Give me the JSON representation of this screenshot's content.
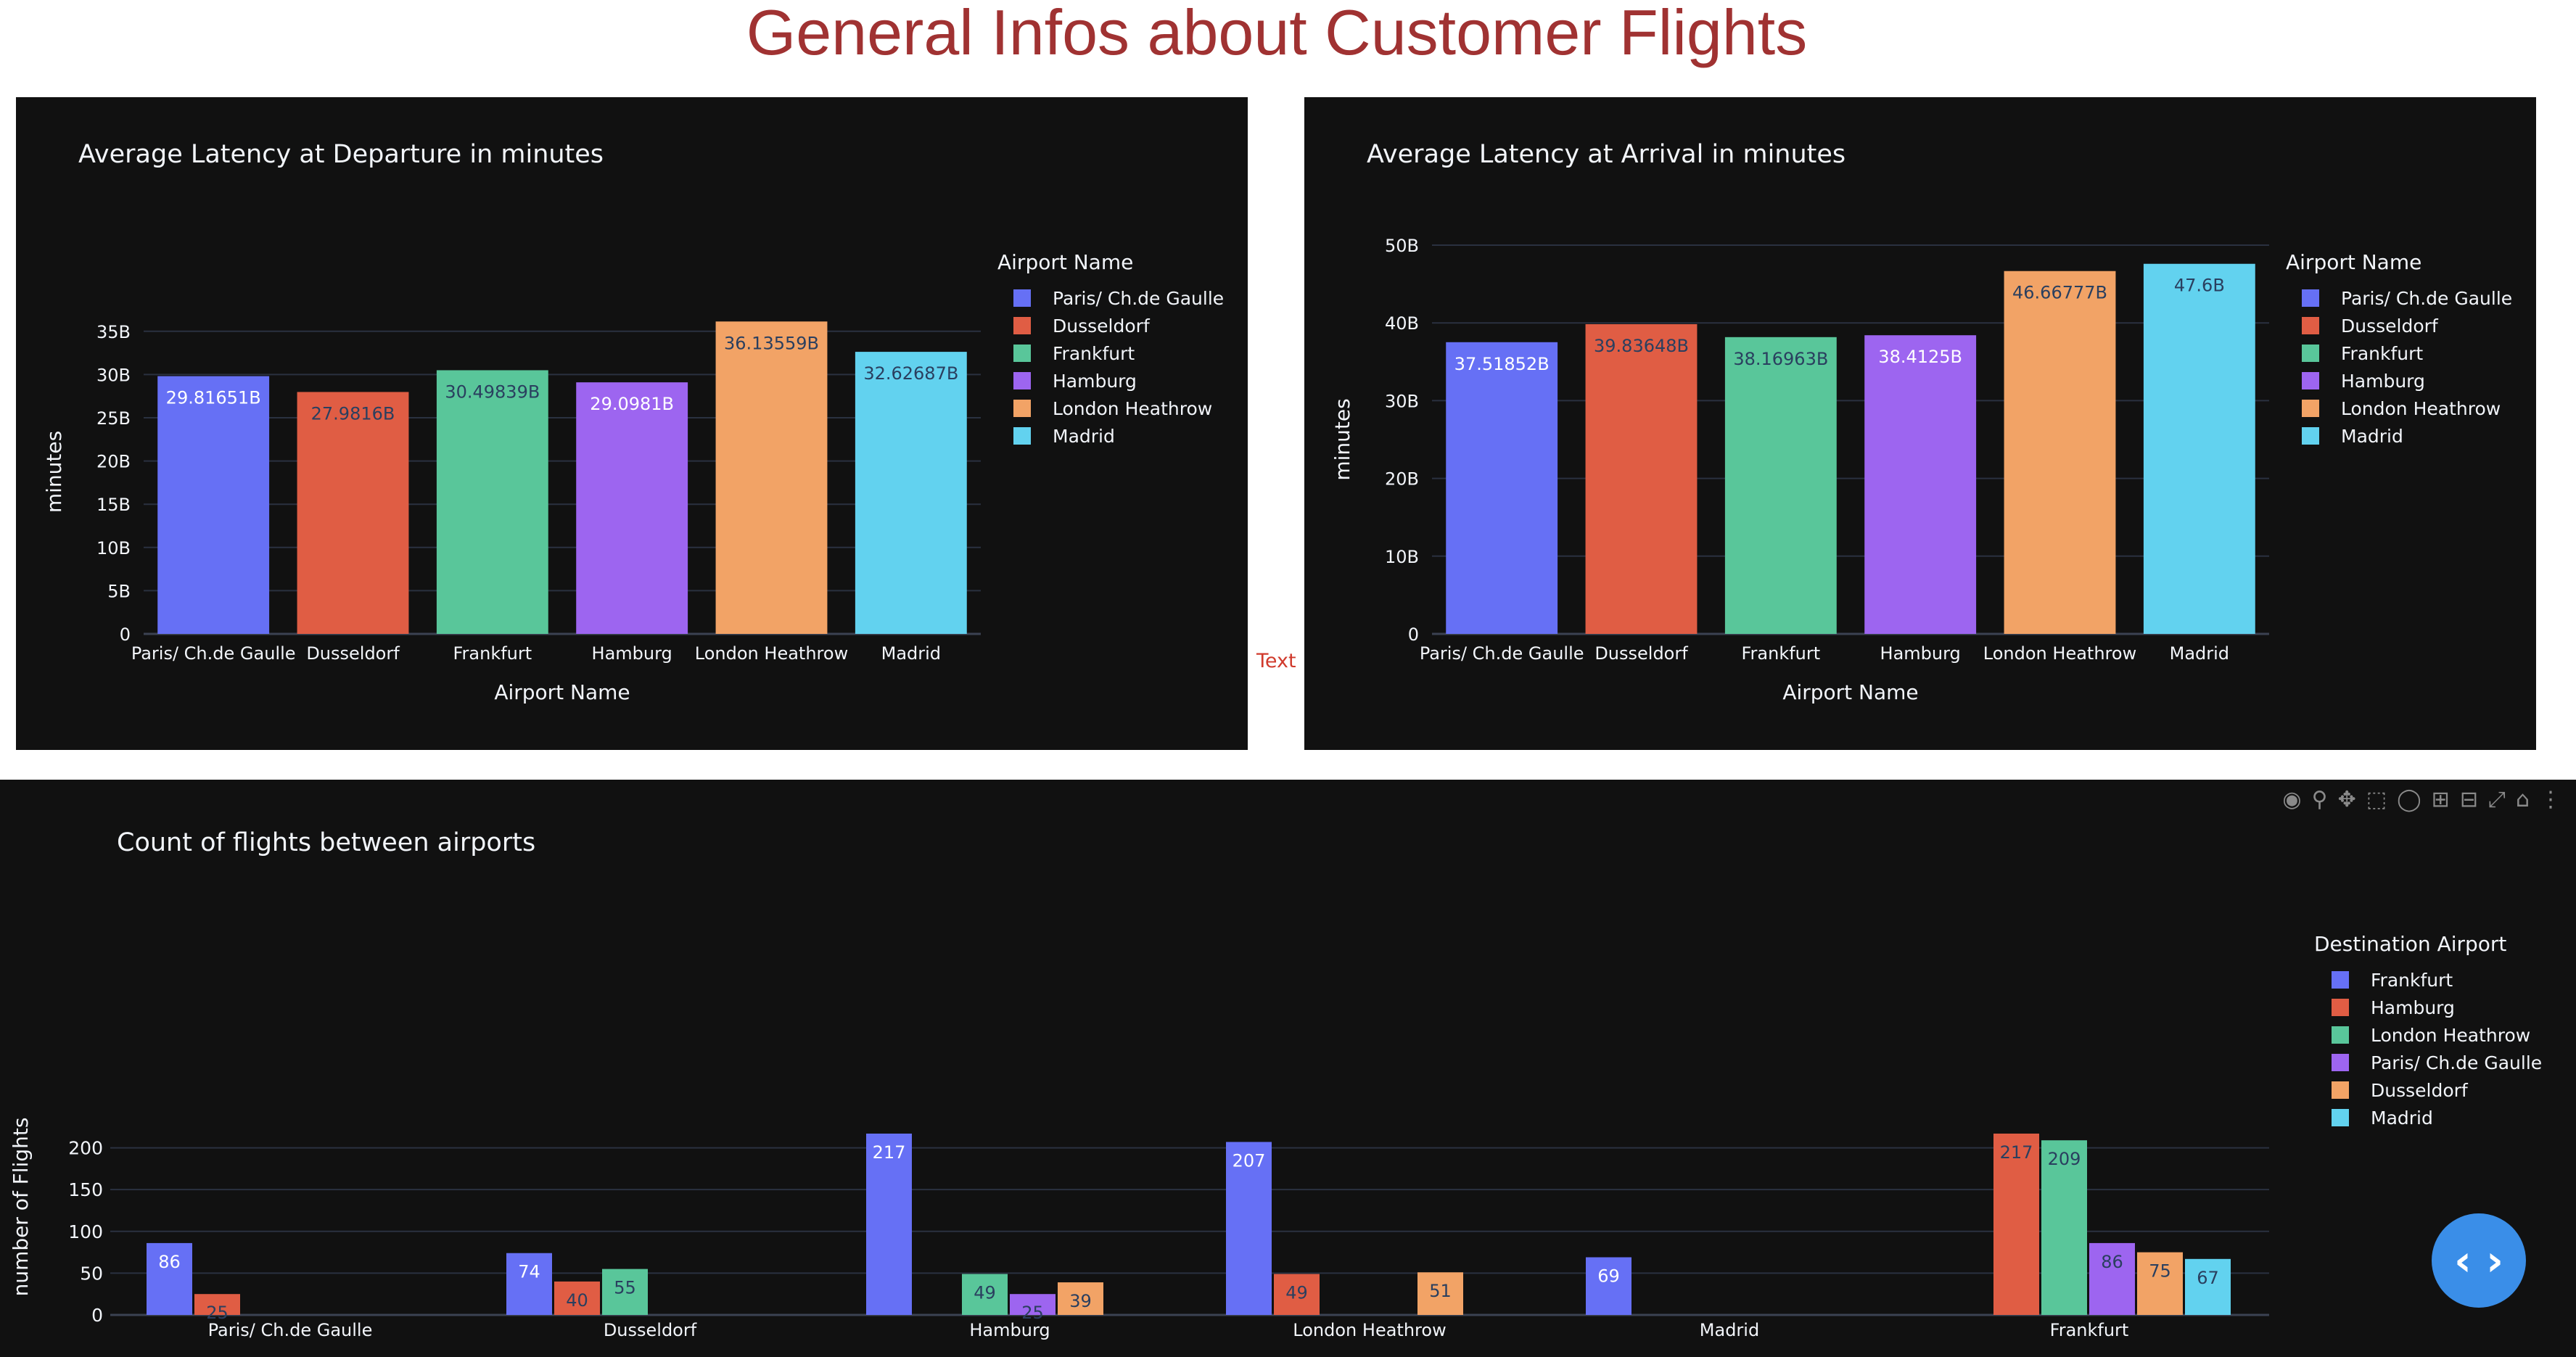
{
  "page": {
    "title": "General Infos about Customer Flights"
  },
  "outside_label": "Text",
  "modebar": {
    "icons": [
      "camera-icon",
      "zoom-icon",
      "pan-icon",
      "box-select-icon",
      "lasso-icon",
      "zoom-in-icon",
      "zoom-out-icon",
      "autoscale-icon",
      "reset-axes-icon",
      "plotly-logo-icon"
    ]
  },
  "fab": {
    "icon": "code-icon",
    "glyph": "‹ ›"
  },
  "colors": {
    "background": "#111111",
    "grid": "#2a3140",
    "text": "#f2f5fa",
    "title": "#a03232",
    "series": [
      "#636efa",
      "#ef553b",
      "#00cc96",
      "#ab63fa",
      "#ffa15a",
      "#19d3f3"
    ]
  },
  "chart_data": [
    {
      "type": "bar",
      "title": "Average Latency at Departure in minutes",
      "xlabel": "Airport Name",
      "ylabel": "minutes",
      "categories": [
        "Paris/ Ch.de Gaulle",
        "Dusseldorf",
        "Frankfurt",
        "Hamburg",
        "London Heathrow",
        "Madrid"
      ],
      "values": [
        29.81651,
        27.9816,
        30.49839,
        29.0981,
        36.13559,
        32.62687
      ],
      "value_labels": [
        "29.81651B",
        "27.9816B",
        "30.49839B",
        "29.0981B",
        "36.13559B",
        "32.62687B"
      ],
      "ylim": [
        0,
        37.5
      ],
      "yticks": [
        0,
        5,
        10,
        15,
        20,
        25,
        30,
        35
      ],
      "ytick_labels": [
        "0",
        "5B",
        "10B",
        "15B",
        "20B",
        "25B",
        "30B",
        "35B"
      ],
      "colors": [
        "#6670f5",
        "#e05d44",
        "#59c69a",
        "#9d65f0",
        "#f2a366",
        "#62d2ef"
      ],
      "label_colors": [
        "#ffffff",
        "#2a3f5f",
        "#2a3f5f",
        "#ffffff",
        "#2a3f5f",
        "#2a3f5f"
      ],
      "legend": {
        "title": "Airport Name",
        "placement": "right",
        "items": [
          "Paris/ Ch.de Gaulle",
          "Dusseldorf",
          "Frankfurt",
          "Hamburg",
          "London Heathrow",
          "Madrid"
        ]
      },
      "grid": true
    },
    {
      "type": "bar",
      "title": "Average Latency at Arrival in minutes",
      "xlabel": "Airport Name",
      "ylabel": "minutes",
      "categories": [
        "Paris/ Ch.de Gaulle",
        "Dusseldorf",
        "Frankfurt",
        "Hamburg",
        "London Heathrow",
        "Madrid"
      ],
      "values": [
        37.51852,
        39.83648,
        38.16963,
        38.4125,
        46.66777,
        47.6
      ],
      "value_labels": [
        "37.51852B",
        "39.83648B",
        "38.16963B",
        "38.4125B",
        "46.66777B",
        "47.6B"
      ],
      "ylim": [
        0,
        50
      ],
      "yticks": [
        0,
        10,
        20,
        30,
        40,
        50
      ],
      "ytick_labels": [
        "0",
        "10B",
        "20B",
        "30B",
        "40B",
        "50B"
      ],
      "colors": [
        "#6670f5",
        "#e05d44",
        "#59c69a",
        "#9d65f0",
        "#f2a366",
        "#62d2ef"
      ],
      "label_colors": [
        "#ffffff",
        "#2a3f5f",
        "#2a3f5f",
        "#ffffff",
        "#2a3f5f",
        "#2a3f5f"
      ],
      "legend": {
        "title": "Airport Name",
        "placement": "right",
        "items": [
          "Paris/ Ch.de Gaulle",
          "Dusseldorf",
          "Frankfurt",
          "Hamburg",
          "London Heathrow",
          "Madrid"
        ]
      },
      "grid": true
    },
    {
      "type": "bar",
      "title": "Count of flights between airports",
      "xlabel": "",
      "ylabel": "number of Flights",
      "categories": [
        "Paris/ Ch.de Gaulle",
        "Dusseldorf",
        "Hamburg",
        "London Heathrow",
        "Madrid",
        "Frankfurt"
      ],
      "ylim": [
        0,
        230
      ],
      "yticks": [
        0,
        50,
        100,
        150,
        200
      ],
      "ytick_labels": [
        "0",
        "50",
        "100",
        "150",
        "200"
      ],
      "series": [
        {
          "name": "Frankfurt",
          "color": "#6670f5",
          "label_color": "#ffffff",
          "values": [
            86,
            74,
            217,
            207,
            69,
            null
          ]
        },
        {
          "name": "Hamburg",
          "color": "#e05d44",
          "label_color": "#2a3f5f",
          "values": [
            25,
            40,
            null,
            49,
            null,
            217
          ]
        },
        {
          "name": "London Heathrow",
          "color": "#59c69a",
          "label_color": "#2a3f5f",
          "values": [
            null,
            55,
            49,
            null,
            null,
            209
          ]
        },
        {
          "name": "Paris/ Ch.de Gaulle",
          "color": "#9d65f0",
          "label_color": "#2a3f5f",
          "values": [
            null,
            null,
            25,
            null,
            null,
            86
          ]
        },
        {
          "name": "Dusseldorf",
          "color": "#f2a366",
          "label_color": "#2a3f5f",
          "values": [
            null,
            null,
            39,
            51,
            null,
            75
          ]
        },
        {
          "name": "Madrid",
          "color": "#62d2ef",
          "label_color": "#2a3f5f",
          "values": [
            null,
            null,
            null,
            null,
            null,
            67
          ]
        }
      ],
      "legend": {
        "title": "Destination Airport",
        "placement": "right"
      },
      "grid": true
    }
  ]
}
